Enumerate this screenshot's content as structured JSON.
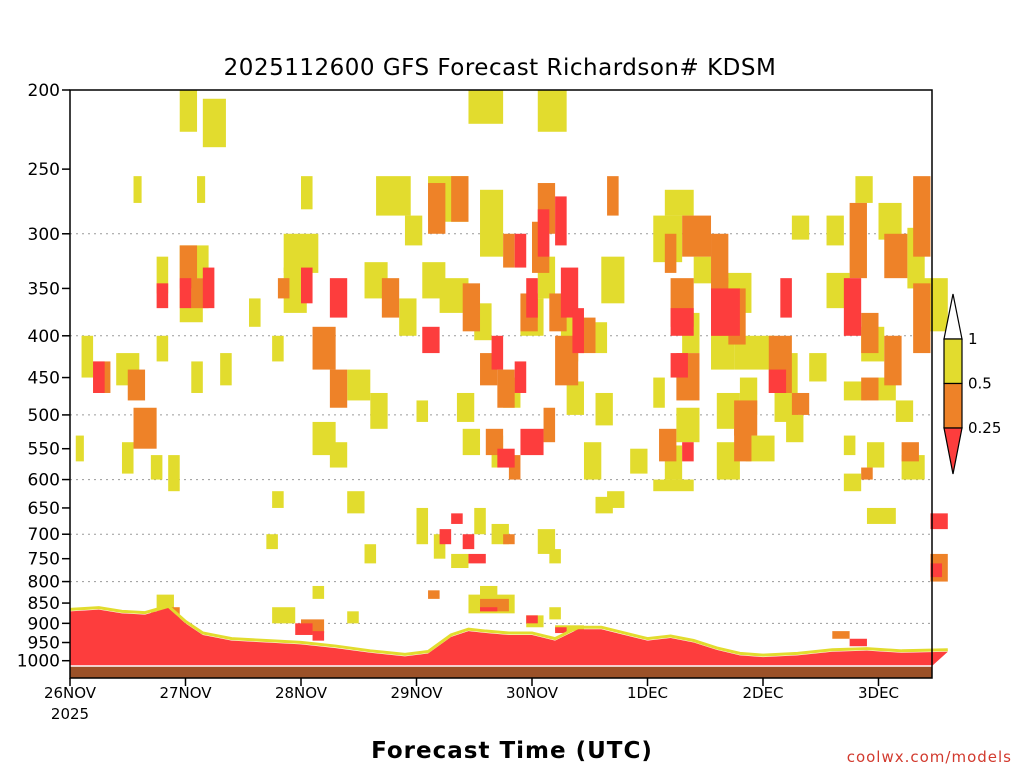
{
  "title": "2025112600 GFS Forecast Richardson# KDSM",
  "xtitle": "Forecast Time (UTC)",
  "credit": "coolwx.com/models",
  "chart_data": {
    "type": "heatmap",
    "title": "2025112600 GFS Forecast Richardson# KDSM",
    "xlabel": "Forecast Time (UTC)",
    "ylabel": "",
    "y_scale": "log-pressure (inverted)",
    "ylim": [
      1050,
      200
    ],
    "y_ticks": [
      200,
      250,
      300,
      350,
      400,
      450,
      500,
      550,
      600,
      650,
      700,
      750,
      800,
      850,
      900,
      950,
      1000
    ],
    "y_grid_levels": [
      300,
      400,
      500,
      600,
      700,
      800,
      900
    ],
    "x_ticks": [
      "26NOV",
      "27NOV",
      "28NOV",
      "29NOV",
      "30NOV",
      "1DEC",
      "2DEC",
      "3DEC"
    ],
    "x_first_tick_year": "2025",
    "xlim_days": [
      0,
      7.6
    ],
    "colorbar": {
      "labels": [
        "1",
        "0.5",
        "0.25"
      ],
      "categories": [
        {
          "range": "> 1",
          "color": "#ffffff"
        },
        {
          "range": "0.5 – 1",
          "color": "#e2dc2e"
        },
        {
          "range": "0.25 – 0.5",
          "color": "#ee8228"
        },
        {
          "range": "< 0.25",
          "color": "#fd3d3d"
        }
      ]
    },
    "ground_color": "#9b5128",
    "cells": {
      "yellow": [
        [
          0.95,
          200,
          1.1,
          225
        ],
        [
          1.15,
          205,
          1.35,
          235
        ],
        [
          3.45,
          200,
          3.75,
          220
        ],
        [
          4.05,
          200,
          4.3,
          225
        ],
        [
          0.55,
          255,
          0.62,
          275
        ],
        [
          1.1,
          255,
          1.17,
          275
        ],
        [
          2.0,
          255,
          2.1,
          280
        ],
        [
          2.65,
          255,
          2.95,
          285
        ],
        [
          3.1,
          255,
          3.45,
          290
        ],
        [
          3.55,
          265,
          3.75,
          320
        ],
        [
          5.15,
          265,
          5.4,
          285
        ],
        [
          5.05,
          285,
          5.3,
          325
        ],
        [
          6.8,
          255,
          6.95,
          275
        ],
        [
          7.0,
          275,
          7.2,
          305
        ],
        [
          6.25,
          285,
          6.4,
          305
        ],
        [
          6.55,
          285,
          6.7,
          310
        ],
        [
          1.85,
          300,
          2.15,
          335
        ],
        [
          2.9,
          285,
          3.05,
          310
        ],
        [
          0.75,
          320,
          0.85,
          355
        ],
        [
          0.95,
          310,
          1.2,
          340
        ],
        [
          1.85,
          330,
          2.05,
          375
        ],
        [
          2.55,
          325,
          2.75,
          360
        ],
        [
          3.05,
          325,
          3.25,
          360
        ],
        [
          3.2,
          340,
          3.45,
          375
        ],
        [
          4.05,
          320,
          4.2,
          360
        ],
        [
          4.6,
          320,
          4.8,
          365
        ],
        [
          5.4,
          320,
          5.55,
          345
        ],
        [
          5.55,
          335,
          5.9,
          375
        ],
        [
          6.55,
          335,
          6.75,
          370
        ],
        [
          7.25,
          295,
          7.4,
          350
        ],
        [
          7.35,
          340,
          7.6,
          395
        ],
        [
          0.95,
          350,
          1.15,
          385
        ],
        [
          1.55,
          360,
          1.65,
          390
        ],
        [
          2.85,
          360,
          3.0,
          400
        ],
        [
          3.5,
          365,
          3.65,
          405
        ],
        [
          3.9,
          360,
          4.1,
          400
        ],
        [
          4.25,
          380,
          4.4,
          430
        ],
        [
          4.55,
          385,
          4.65,
          420
        ],
        [
          5.3,
          375,
          5.45,
          420
        ],
        [
          5.55,
          380,
          5.75,
          440
        ],
        [
          5.75,
          400,
          6.1,
          440
        ],
        [
          6.15,
          420,
          6.3,
          470
        ],
        [
          6.4,
          420,
          6.55,
          455
        ],
        [
          6.85,
          390,
          7.05,
          430
        ],
        [
          0.1,
          400,
          0.2,
          450
        ],
        [
          0.4,
          420,
          0.6,
          460
        ],
        [
          0.75,
          400,
          0.85,
          430
        ],
        [
          1.05,
          430,
          1.15,
          470
        ],
        [
          1.3,
          420,
          1.4,
          460
        ],
        [
          1.75,
          400,
          1.85,
          430
        ],
        [
          2.4,
          440,
          2.6,
          480
        ],
        [
          2.6,
          470,
          2.75,
          520
        ],
        [
          3.0,
          480,
          3.1,
          510
        ],
        [
          3.35,
          470,
          3.5,
          510
        ],
        [
          3.75,
          450,
          3.9,
          490
        ],
        [
          4.3,
          455,
          4.45,
          500
        ],
        [
          4.55,
          470,
          4.7,
          515
        ],
        [
          5.05,
          450,
          5.15,
          490
        ],
        [
          5.25,
          490,
          5.45,
          540
        ],
        [
          5.6,
          470,
          5.8,
          520
        ],
        [
          5.8,
          450,
          5.95,
          500
        ],
        [
          6.1,
          470,
          6.3,
          510
        ],
        [
          6.2,
          500,
          6.35,
          540
        ],
        [
          6.7,
          455,
          6.9,
          480
        ],
        [
          7.0,
          450,
          7.15,
          480
        ],
        [
          7.15,
          480,
          7.3,
          510
        ],
        [
          0.05,
          530,
          0.12,
          570
        ],
        [
          0.45,
          540,
          0.55,
          590
        ],
        [
          0.7,
          560,
          0.8,
          600
        ],
        [
          0.85,
          560,
          0.95,
          620
        ],
        [
          2.1,
          510,
          2.3,
          560
        ],
        [
          2.25,
          540,
          2.4,
          580
        ],
        [
          3.4,
          520,
          3.55,
          560
        ],
        [
          3.65,
          530,
          3.75,
          580
        ],
        [
          4.45,
          540,
          4.6,
          600
        ],
        [
          4.85,
          550,
          5.0,
          590
        ],
        [
          5.15,
          545,
          5.3,
          600
        ],
        [
          5.6,
          540,
          5.8,
          600
        ],
        [
          5.85,
          530,
          6.1,
          570
        ],
        [
          6.7,
          530,
          6.8,
          560
        ],
        [
          6.9,
          540,
          7.05,
          580
        ],
        [
          7.2,
          560,
          7.4,
          600
        ],
        [
          6.7,
          590,
          6.85,
          620
        ],
        [
          4.65,
          620,
          4.8,
          650
        ],
        [
          4.55,
          630,
          4.7,
          660
        ],
        [
          2.4,
          620,
          2.55,
          660
        ],
        [
          3.0,
          650,
          3.1,
          720
        ],
        [
          3.5,
          650,
          3.6,
          700
        ],
        [
          3.65,
          680,
          3.8,
          720
        ],
        [
          4.05,
          690,
          4.2,
          740
        ],
        [
          4.15,
          730,
          4.25,
          760
        ],
        [
          3.15,
          700,
          3.25,
          750
        ],
        [
          6.9,
          650,
          7.15,
          680
        ],
        [
          1.75,
          620,
          1.85,
          650
        ],
        [
          1.7,
          700,
          1.8,
          730
        ],
        [
          3.3,
          740,
          3.45,
          770
        ],
        [
          3.45,
          830,
          3.85,
          875
        ],
        [
          3.55,
          810,
          3.7,
          835
        ],
        [
          2.1,
          810,
          2.2,
          840
        ],
        [
          1.75,
          860,
          1.95,
          900
        ],
        [
          0.75,
          830,
          0.9,
          870
        ],
        [
          3.95,
          880,
          4.1,
          910
        ],
        [
          4.15,
          860,
          4.25,
          890
        ],
        [
          4.2,
          905,
          4.45,
          920
        ],
        [
          2.4,
          870,
          2.5,
          900
        ],
        [
          0.7,
          870,
          0.8,
          900
        ],
        [
          2.55,
          720,
          2.65,
          760
        ],
        [
          5.05,
          600,
          5.4,
          620
        ]
      ],
      "orange": [
        [
          3.1,
          260,
          3.25,
          300
        ],
        [
          3.3,
          255,
          3.45,
          290
        ],
        [
          4.05,
          260,
          4.2,
          300
        ],
        [
          4.65,
          255,
          4.75,
          285
        ],
        [
          7.3,
          255,
          7.45,
          320
        ],
        [
          6.75,
          275,
          6.9,
          340
        ],
        [
          5.15,
          300,
          5.25,
          335
        ],
        [
          5.3,
          285,
          5.55,
          320
        ],
        [
          5.55,
          300,
          5.7,
          345
        ],
        [
          4.0,
          290,
          4.15,
          335
        ],
        [
          3.75,
          300,
          3.85,
          330
        ],
        [
          0.95,
          310,
          1.1,
          350
        ],
        [
          1.05,
          340,
          1.2,
          370
        ],
        [
          1.8,
          340,
          1.9,
          360
        ],
        [
          2.7,
          340,
          2.85,
          380
        ],
        [
          3.4,
          345,
          3.55,
          395
        ],
        [
          3.9,
          355,
          4.05,
          395
        ],
        [
          4.15,
          355,
          4.3,
          395
        ],
        [
          5.2,
          340,
          5.4,
          390
        ],
        [
          5.55,
          340,
          5.7,
          400
        ],
        [
          5.7,
          350,
          5.85,
          410
        ],
        [
          6.85,
          375,
          7.0,
          420
        ],
        [
          7.05,
          300,
          7.25,
          340
        ],
        [
          7.3,
          345,
          7.45,
          420
        ],
        [
          0.2,
          430,
          0.35,
          470
        ],
        [
          0.5,
          440,
          0.65,
          480
        ],
        [
          0.55,
          490,
          0.75,
          550
        ],
        [
          2.1,
          390,
          2.3,
          440
        ],
        [
          2.25,
          440,
          2.4,
          490
        ],
        [
          3.55,
          420,
          3.7,
          460
        ],
        [
          3.7,
          440,
          3.85,
          490
        ],
        [
          4.2,
          400,
          4.4,
          460
        ],
        [
          4.1,
          490,
          4.2,
          540
        ],
        [
          4.4,
          380,
          4.55,
          420
        ],
        [
          5.25,
          420,
          5.45,
          480
        ],
        [
          5.75,
          480,
          5.95,
          530
        ],
        [
          6.05,
          400,
          6.25,
          470
        ],
        [
          6.25,
          470,
          6.4,
          500
        ],
        [
          6.85,
          450,
          7.0,
          480
        ],
        [
          7.05,
          400,
          7.2,
          460
        ],
        [
          7.2,
          540,
          7.35,
          570
        ],
        [
          3.6,
          520,
          3.75,
          560
        ],
        [
          3.8,
          560,
          3.9,
          600
        ],
        [
          5.1,
          520,
          5.25,
          570
        ],
        [
          5.75,
          520,
          5.9,
          570
        ],
        [
          6.85,
          580,
          6.95,
          600
        ],
        [
          3.55,
          840,
          3.8,
          870
        ],
        [
          3.75,
          700,
          3.85,
          720
        ],
        [
          2.0,
          890,
          2.2,
          925
        ],
        [
          0.85,
          860,
          0.95,
          895
        ],
        [
          7.45,
          740,
          7.6,
          800
        ],
        [
          3.1,
          820,
          3.2,
          840
        ],
        [
          6.6,
          920,
          6.75,
          940
        ]
      ],
      "red": [
        [
          4.05,
          280,
          4.15,
          320
        ],
        [
          4.2,
          270,
          4.3,
          310
        ],
        [
          3.85,
          300,
          3.95,
          330
        ],
        [
          0.95,
          340,
          1.05,
          370
        ],
        [
          1.15,
          330,
          1.25,
          370
        ],
        [
          0.75,
          345,
          0.85,
          370
        ],
        [
          2.0,
          330,
          2.1,
          365
        ],
        [
          2.25,
          340,
          2.4,
          380
        ],
        [
          3.95,
          340,
          4.05,
          380
        ],
        [
          4.25,
          330,
          4.4,
          380
        ],
        [
          4.35,
          370,
          4.45,
          420
        ],
        [
          5.55,
          350,
          5.8,
          400
        ],
        [
          6.15,
          340,
          6.25,
          380
        ],
        [
          6.7,
          340,
          6.85,
          400
        ],
        [
          5.2,
          370,
          5.4,
          400
        ],
        [
          3.05,
          390,
          3.2,
          420
        ],
        [
          0.2,
          430,
          0.3,
          470
        ],
        [
          3.65,
          400,
          3.75,
          440
        ],
        [
          3.85,
          430,
          3.95,
          470
        ],
        [
          5.2,
          420,
          5.35,
          450
        ],
        [
          6.05,
          440,
          6.2,
          470
        ],
        [
          3.9,
          520,
          4.1,
          560
        ],
        [
          3.7,
          550,
          3.85,
          580
        ],
        [
          5.3,
          540,
          5.4,
          570
        ],
        [
          3.3,
          660,
          3.4,
          680
        ],
        [
          3.2,
          690,
          3.3,
          720
        ],
        [
          3.4,
          700,
          3.5,
          730
        ],
        [
          3.45,
          740,
          3.6,
          760
        ],
        [
          1.95,
          900,
          2.1,
          930
        ],
        [
          2.1,
          920,
          2.2,
          945
        ],
        [
          0.85,
          880,
          0.95,
          900
        ],
        [
          3.95,
          880,
          4.05,
          900
        ],
        [
          7.45,
          660,
          7.6,
          690
        ],
        [
          7.45,
          760,
          7.55,
          790
        ],
        [
          3.55,
          860,
          3.7,
          870
        ],
        [
          4.2,
          910,
          4.3,
          925
        ],
        [
          6.75,
          940,
          6.9,
          960
        ]
      ]
    },
    "boundary_layer_red_profile": [
      [
        0.0,
        870
      ],
      [
        0.25,
        866
      ],
      [
        0.45,
        875
      ],
      [
        0.65,
        878
      ],
      [
        0.85,
        862
      ],
      [
        1.0,
        900
      ],
      [
        1.15,
        930
      ],
      [
        1.4,
        945
      ],
      [
        1.7,
        950
      ],
      [
        2.0,
        955
      ],
      [
        2.3,
        965
      ],
      [
        2.6,
        978
      ],
      [
        2.9,
        988
      ],
      [
        3.1,
        980
      ],
      [
        3.3,
        935
      ],
      [
        3.45,
        920
      ],
      [
        3.6,
        925
      ],
      [
        3.8,
        930
      ],
      [
        4.0,
        930
      ],
      [
        4.2,
        945
      ],
      [
        4.4,
        915
      ],
      [
        4.6,
        915
      ],
      [
        4.8,
        930
      ],
      [
        5.0,
        945
      ],
      [
        5.2,
        938
      ],
      [
        5.4,
        950
      ],
      [
        5.6,
        970
      ],
      [
        5.8,
        985
      ],
      [
        6.0,
        990
      ],
      [
        6.3,
        985
      ],
      [
        6.6,
        975
      ],
      [
        6.9,
        972
      ],
      [
        7.2,
        978
      ],
      [
        7.6,
        975
      ]
    ]
  }
}
